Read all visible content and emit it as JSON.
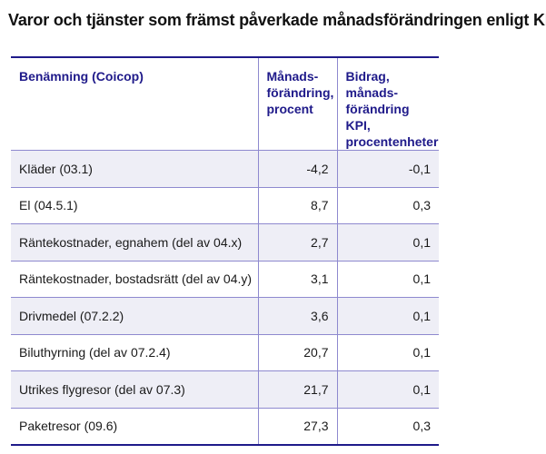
{
  "title": "Varor och tjänster som främst påverkade månadsförändringen enligt KPI",
  "table": {
    "headers": [
      "Benämning (Coicop)",
      "Månads-förändring, procent",
      "Bidrag, månads-förändring KPI, procentenheter"
    ],
    "rows": [
      {
        "name": "Kläder (03.1)",
        "change": "-4,2",
        "contribution": "-0,1"
      },
      {
        "name": "El (04.5.1)",
        "change": "8,7",
        "contribution": "0,3"
      },
      {
        "name": "Räntekostnader, egnahem (del av 04.x)",
        "change": "2,7",
        "contribution": "0,1"
      },
      {
        "name": "Räntekostnader, bostadsrätt (del av 04.y)",
        "change": "3,1",
        "contribution": "0,1"
      },
      {
        "name": "Drivmedel (07.2.2)",
        "change": "3,6",
        "contribution": "0,1"
      },
      {
        "name": "Biluthyrning (del av 07.2.4)",
        "change": "20,7",
        "contribution": "0,1"
      },
      {
        "name": "Utrikes flygresor (del av 07.3)",
        "change": "21,7",
        "contribution": "0,1"
      },
      {
        "name": "Paketresor (09.6)",
        "change": "27,3",
        "contribution": "0,3"
      }
    ]
  },
  "colors": {
    "header_text": "#1f1a8a",
    "rule": "#1f1a8a",
    "grid": "#8e89cf",
    "stripe": "#eeeef6"
  }
}
